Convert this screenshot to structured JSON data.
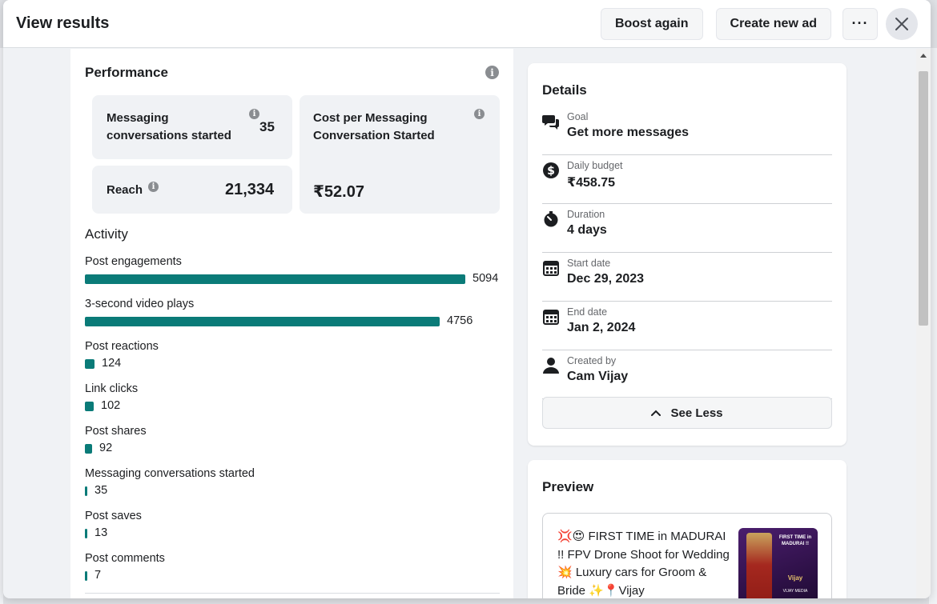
{
  "header": {
    "title": "View results",
    "boost_again": "Boost again",
    "create_new_ad": "Create new ad",
    "more": "···"
  },
  "performance": {
    "title": "Performance",
    "metrics": {
      "messaging": {
        "label_line1": "Messaging",
        "label_line2": "conversations started",
        "value": "35"
      },
      "cost": {
        "label_line1": "Cost per Messaging",
        "label_line2": "Conversation Started",
        "value": "₹52.07"
      },
      "reach": {
        "label": "Reach",
        "value": "21,334"
      }
    }
  },
  "activity": {
    "title": "Activity",
    "max": 5094,
    "items": [
      {
        "label": "Post engagements",
        "value": "5094",
        "num": 5094
      },
      {
        "label": "3-second video plays",
        "value": "4756",
        "num": 4756
      },
      {
        "label": "Post reactions",
        "value": "124",
        "num": 124
      },
      {
        "label": "Link clicks",
        "value": "102",
        "num": 102
      },
      {
        "label": "Post shares",
        "value": "92",
        "num": 92
      },
      {
        "label": "Messaging conversations started",
        "value": "35",
        "num": 35
      },
      {
        "label": "Post saves",
        "value": "13",
        "num": 13
      },
      {
        "label": "Post comments",
        "value": "7",
        "num": 7
      }
    ]
  },
  "details": {
    "title": "Details",
    "rows": [
      {
        "icon": "chat-bubbles-icon",
        "key": "Goal",
        "value": "Get more messages"
      },
      {
        "icon": "dollar-icon",
        "key": "Daily budget",
        "value": "₹458.75"
      },
      {
        "icon": "stopwatch-icon",
        "key": "Duration",
        "value": "4 days"
      },
      {
        "icon": "calendar-icon",
        "key": "Start date",
        "value": "Dec 29, 2023"
      },
      {
        "icon": "calendar-icon",
        "key": "End date",
        "value": "Jan 2, 2024"
      },
      {
        "icon": "person-icon",
        "key": "Created by",
        "value": "Cam Vijay"
      }
    ],
    "see_less": "See Less"
  },
  "preview": {
    "title": "Preview",
    "text": "💢😍 FIRST TIME in MADURAI !! FPV Drone Shoot for Wedding 💥 Luxury cars for Groom & Bride ✨📍Vijay",
    "thumb_title": "FIRST TIME in MADURAI !!",
    "thumb_brand": "Vijay",
    "thumb_footer": "VIJAY MEDIA"
  },
  "colors": {
    "bar": "#0a7b78",
    "background": "#f0f2f5",
    "card": "#ffffff"
  }
}
